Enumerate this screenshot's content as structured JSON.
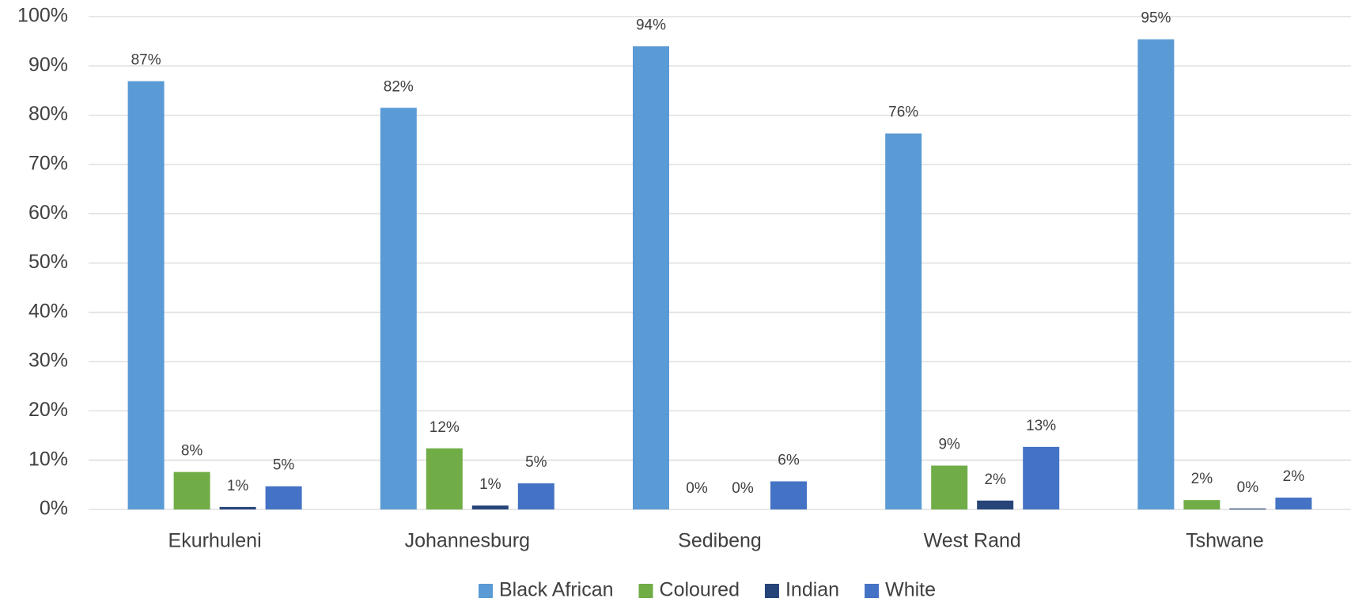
{
  "chart_data": {
    "type": "bar",
    "categories": [
      "Ekurhuleni",
      "Johannesburg",
      "Sedibeng",
      "West Rand",
      "Tshwane"
    ],
    "series": [
      {
        "name": "Black African",
        "color": "#5b9bd5",
        "values": [
          86.9,
          81.5,
          94.0,
          76.3,
          95.4
        ],
        "value_labels": [
          "87%",
          "82%",
          "94%",
          "76%",
          "95%"
        ]
      },
      {
        "name": "Coloured",
        "color": "#70ad47",
        "values": [
          7.6,
          12.4,
          0,
          8.9,
          1.9
        ],
        "value_labels": [
          "8%",
          "12%",
          "0%",
          "9%",
          "2%"
        ]
      },
      {
        "name": "Indian",
        "color": "#264478",
        "values": [
          0.5,
          0.8,
          0,
          1.8,
          0.2
        ],
        "value_labels": [
          "1%",
          "1%",
          "0%",
          "2%",
          "0%"
        ]
      },
      {
        "name": "White",
        "color": "#4472c4",
        "values": [
          4.7,
          5.3,
          5.7,
          12.7,
          2.4
        ],
        "value_labels": [
          "5%",
          "5%",
          "6%",
          "13%",
          "2%"
        ]
      }
    ],
    "ylim": [
      0,
      100
    ],
    "yticks": [
      {
        "value": 0,
        "label": "0%"
      },
      {
        "value": 10,
        "label": "10%"
      },
      {
        "value": 20,
        "label": "20%"
      },
      {
        "value": 30,
        "label": "30%"
      },
      {
        "value": 40,
        "label": "40%"
      },
      {
        "value": 50,
        "label": "50%"
      },
      {
        "value": 60,
        "label": "60%"
      },
      {
        "value": 70,
        "label": "70%"
      },
      {
        "value": 80,
        "label": "80%"
      },
      {
        "value": 90,
        "label": "90%"
      },
      {
        "value": 100,
        "label": "100%"
      }
    ],
    "grid": true,
    "legend": "bottom"
  }
}
